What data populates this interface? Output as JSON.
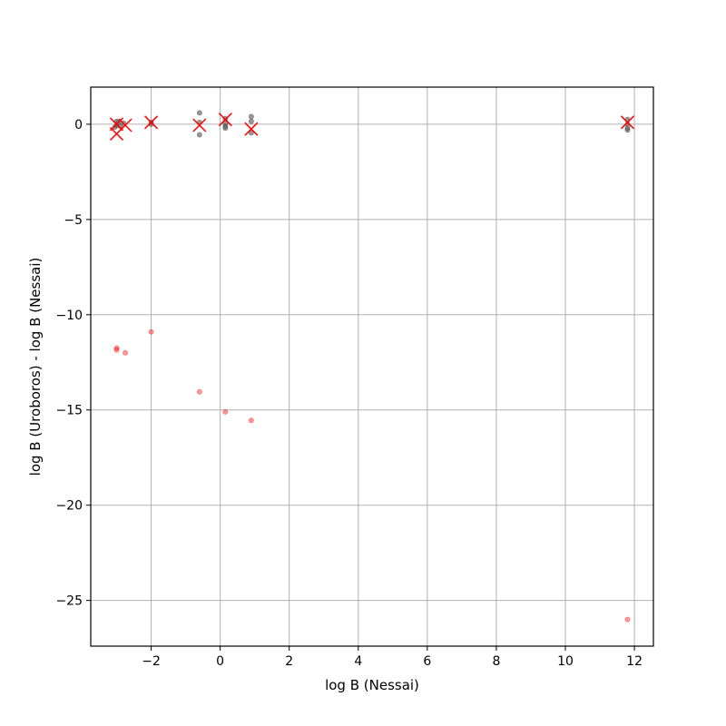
{
  "chart_data": {
    "type": "scatter",
    "title": "",
    "xlabel": "log B (Nessai)",
    "ylabel": "log B (Uroboros) - log B (Nessai)",
    "xlim": [
      -3.75,
      12.55
    ],
    "ylim": [
      -27.4,
      1.95
    ],
    "xticks": [
      -2,
      0,
      2,
      4,
      6,
      8,
      10,
      12
    ],
    "yticks": [
      0,
      -5,
      -10,
      -15,
      -20,
      -25
    ],
    "grid": true,
    "colors": {
      "grey": "#555555",
      "red": "#ff0000",
      "grid": "#b0b0b0"
    },
    "series": [
      {
        "marker": "dot",
        "color": "#555555",
        "opacity": 0.6,
        "points": [
          [
            -3.0,
            0.15
          ],
          [
            -3.0,
            -0.05
          ],
          [
            -2.95,
            0.1
          ],
          [
            -2.9,
            -0.1
          ],
          [
            -2.8,
            0.05
          ],
          [
            -3.05,
            -0.15
          ],
          [
            -2.0,
            0.1
          ],
          [
            -2.0,
            0.0
          ],
          [
            -0.6,
            0.6
          ],
          [
            -0.6,
            0.1
          ],
          [
            -0.6,
            -0.55
          ],
          [
            0.15,
            0.3
          ],
          [
            0.15,
            0.05
          ],
          [
            0.15,
            -0.1
          ],
          [
            0.15,
            -0.2
          ],
          [
            0.9,
            0.4
          ],
          [
            0.9,
            0.15
          ],
          [
            0.9,
            -0.45
          ],
          [
            11.8,
            0.25
          ],
          [
            11.8,
            0.0
          ],
          [
            11.8,
            -0.2
          ],
          [
            11.8,
            -0.3
          ]
        ]
      },
      {
        "marker": "dot",
        "color": "#ff0000",
        "opacity": 0.4,
        "points": [
          [
            -3.0,
            -11.75
          ],
          [
            -3.0,
            -11.85
          ],
          [
            -2.75,
            -12.0
          ],
          [
            -2.0,
            -10.9
          ],
          [
            -0.6,
            -14.05
          ],
          [
            0.15,
            -15.1
          ],
          [
            0.9,
            -15.55
          ],
          [
            11.8,
            -26.0
          ]
        ]
      },
      {
        "marker": "x",
        "color": "#ff0000",
        "opacity": 1.0,
        "points": [
          [
            -3.0,
            0.0
          ],
          [
            -3.0,
            -0.5
          ],
          [
            -2.75,
            -0.05
          ],
          [
            -2.0,
            0.1
          ],
          [
            -0.6,
            -0.05
          ],
          [
            0.15,
            0.25
          ],
          [
            0.9,
            -0.25
          ],
          [
            11.8,
            0.1
          ]
        ]
      }
    ]
  }
}
